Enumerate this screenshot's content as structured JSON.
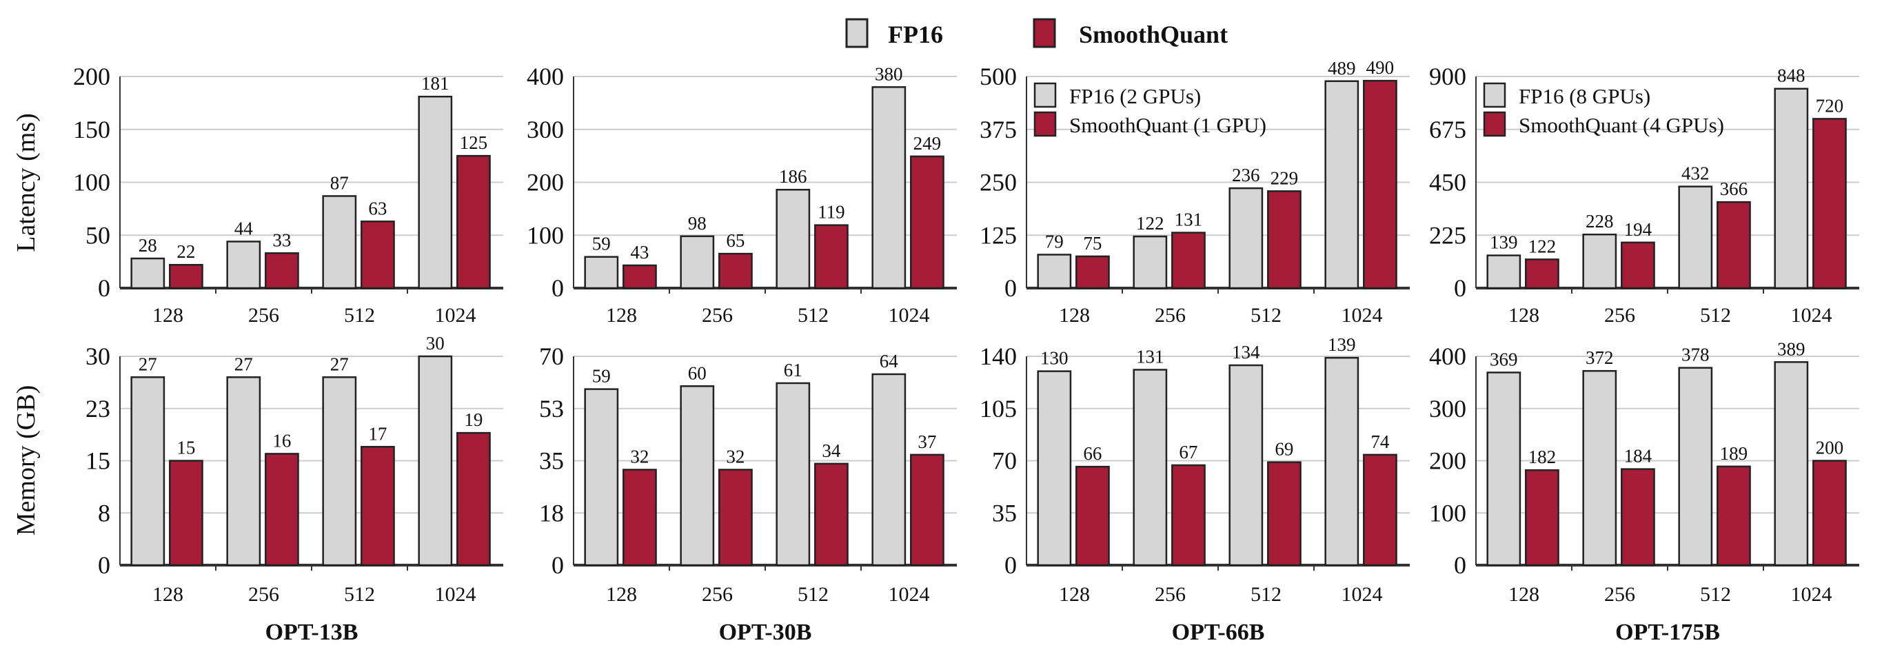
{
  "colors": {
    "fp16": "#d6d6d6",
    "smoothquant": "#a51d36",
    "grid": "#cccccc",
    "axis": "#333333"
  },
  "legend": [
    {
      "label": "FP16",
      "series": "fp16"
    },
    {
      "label": "SmoothQuant",
      "series": "smoothquant"
    }
  ],
  "chart_data": {
    "type": "bar",
    "categories": [
      "128",
      "256",
      "512",
      "1024"
    ],
    "row_ylabels": [
      "Latency (ms)",
      "Memory (GB)"
    ],
    "grid": true,
    "panels": [
      {
        "title": "OPT-13B",
        "latency": {
          "ylim": [
            0,
            200
          ],
          "ticks": [
            "0",
            "50",
            "100",
            "150",
            "200"
          ],
          "fp16": [
            28,
            44,
            87,
            181
          ],
          "smoothquant": [
            22,
            33,
            63,
            125
          ]
        },
        "memory": {
          "ylim": [
            0,
            30
          ],
          "ticks": [
            "0",
            "8",
            "15",
            "23",
            "30"
          ],
          "fp16": [
            27,
            27,
            27,
            30
          ],
          "smoothquant": [
            15,
            16,
            17,
            19
          ]
        }
      },
      {
        "title": "OPT-30B",
        "latency": {
          "ylim": [
            0,
            400
          ],
          "ticks": [
            "0",
            "100",
            "200",
            "300",
            "400"
          ],
          "fp16": [
            59,
            98,
            186,
            380
          ],
          "smoothquant": [
            43,
            65,
            119,
            249
          ]
        },
        "memory": {
          "ylim": [
            0,
            70
          ],
          "ticks": [
            "0",
            "18",
            "35",
            "53",
            "70"
          ],
          "fp16": [
            59,
            60,
            61,
            64
          ],
          "smoothquant": [
            32,
            32,
            34,
            37
          ]
        }
      },
      {
        "title": "OPT-66B",
        "latency": {
          "ylim": [
            0,
            500
          ],
          "ticks": [
            "0",
            "125",
            "250",
            "375",
            "500"
          ],
          "fp16": [
            79,
            122,
            236,
            489
          ],
          "smoothquant": [
            75,
            131,
            229,
            490
          ],
          "legend": [
            "FP16 (2 GPUs)",
            "SmoothQuant (1 GPU)"
          ]
        },
        "memory": {
          "ylim": [
            0,
            140
          ],
          "ticks": [
            "0",
            "35",
            "70",
            "105",
            "140"
          ],
          "fp16": [
            130,
            131,
            134,
            139
          ],
          "smoothquant": [
            66,
            67,
            69,
            74
          ]
        }
      },
      {
        "title": "OPT-175B",
        "latency": {
          "ylim": [
            0,
            900
          ],
          "ticks": [
            "0",
            "225",
            "450",
            "675",
            "900"
          ],
          "fp16": [
            139,
            228,
            432,
            848
          ],
          "smoothquant": [
            122,
            194,
            366,
            720
          ],
          "legend": [
            "FP16 (8 GPUs)",
            "SmoothQuant (4 GPUs)"
          ]
        },
        "memory": {
          "ylim": [
            0,
            400
          ],
          "ticks": [
            "0",
            "100",
            "200",
            "300",
            "400"
          ],
          "fp16": [
            369,
            372,
            378,
            389
          ],
          "smoothquant": [
            182,
            184,
            189,
            200
          ]
        }
      }
    ]
  }
}
